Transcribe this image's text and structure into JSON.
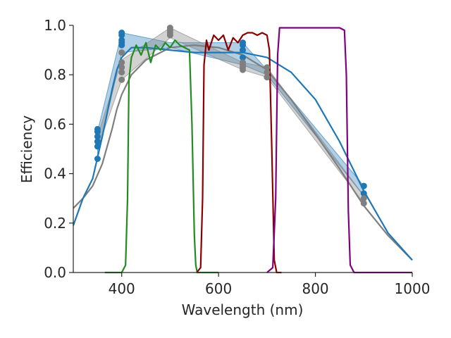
{
  "chart_data": {
    "type": "line",
    "title": "",
    "xlabel": "Wavelength (nm)",
    "ylabel": "Efficiency",
    "xlim": [
      300,
      1000
    ],
    "ylim": [
      0.0,
      1.0
    ],
    "xticks": [
      400,
      600,
      800,
      1000
    ],
    "xtick_labels": [
      "400",
      "600",
      "800",
      "1000"
    ],
    "yticks": [
      0.0,
      0.2,
      0.4,
      0.6,
      0.8,
      1.0
    ],
    "ytick_labels": [
      "0.0",
      "0.2",
      "0.4",
      "0.6",
      "0.8",
      "1.0"
    ],
    "grid": false,
    "bands": [
      {
        "name": "blue-band",
        "color": "#1f77b4",
        "x": [
          350,
          400,
          500,
          650,
          700,
          900
        ],
        "lower": [
          0.47,
          0.89,
          0.91,
          0.84,
          0.8,
          0.31
        ],
        "upper": [
          0.57,
          0.97,
          0.93,
          0.93,
          0.82,
          0.35
        ]
      },
      {
        "name": "gray-band",
        "color": "#7f7f7f",
        "x": [
          350,
          400,
          500,
          650,
          700,
          900
        ],
        "lower": [
          0.5,
          0.78,
          0.95,
          0.82,
          0.79,
          0.28
        ],
        "upper": [
          0.55,
          0.86,
          0.99,
          0.85,
          0.83,
          0.31
        ]
      }
    ],
    "series": [
      {
        "name": "gray-curve",
        "color": "#7f7f7f",
        "x": [
          300,
          320,
          340,
          360,
          380,
          390,
          400,
          420,
          450,
          480,
          500,
          550,
          600,
          650,
          700,
          750,
          800,
          850,
          900,
          950,
          1000
        ],
        "y": [
          0.26,
          0.3,
          0.35,
          0.44,
          0.58,
          0.66,
          0.72,
          0.8,
          0.86,
          0.89,
          0.91,
          0.92,
          0.91,
          0.88,
          0.82,
          0.7,
          0.56,
          0.42,
          0.27,
          0.15,
          0.05
        ]
      },
      {
        "name": "blue-curve",
        "color": "#1f77b4",
        "x": [
          300,
          320,
          340,
          360,
          380,
          390,
          400,
          420,
          450,
          500,
          550,
          600,
          650,
          700,
          750,
          800,
          850,
          900,
          950,
          1000
        ],
        "y": [
          0.19,
          0.3,
          0.38,
          0.55,
          0.74,
          0.82,
          0.87,
          0.91,
          0.91,
          0.9,
          0.89,
          0.89,
          0.89,
          0.87,
          0.81,
          0.7,
          0.53,
          0.33,
          0.16,
          0.05
        ]
      },
      {
        "name": "green-filter",
        "color": "#228b22",
        "x": [
          365,
          400,
          408,
          412,
          415,
          420,
          430,
          440,
          450,
          460,
          470,
          480,
          490,
          500,
          510,
          520,
          530,
          540,
          545,
          550,
          553,
          556,
          600
        ],
        "y": [
          0.0,
          0.0,
          0.03,
          0.3,
          0.78,
          0.87,
          0.92,
          0.88,
          0.93,
          0.85,
          0.92,
          0.9,
          0.93,
          0.91,
          0.94,
          0.92,
          0.91,
          0.9,
          0.6,
          0.15,
          0.03,
          0.0,
          0.0
        ]
      },
      {
        "name": "red-filter",
        "color": "#8b0000",
        "x": [
          555,
          563,
          567,
          570,
          575,
          580,
          590,
          600,
          610,
          620,
          630,
          640,
          650,
          660,
          670,
          680,
          690,
          700,
          705,
          710,
          715,
          720,
          730
        ],
        "y": [
          0.0,
          0.02,
          0.3,
          0.84,
          0.94,
          0.9,
          0.96,
          0.94,
          0.96,
          0.9,
          0.95,
          0.93,
          0.96,
          0.97,
          0.97,
          0.96,
          0.97,
          0.96,
          0.9,
          0.5,
          0.05,
          0.0,
          0.0
        ]
      },
      {
        "name": "purple-filter",
        "color": "#800080",
        "x": [
          700,
          712,
          718,
          722,
          726,
          730,
          740,
          800,
          850,
          860,
          864,
          868,
          872,
          880,
          1000
        ],
        "y": [
          0.0,
          0.02,
          0.3,
          0.88,
          0.99,
          0.99,
          0.99,
          0.99,
          0.99,
          0.98,
          0.8,
          0.25,
          0.03,
          0.0,
          0.0
        ]
      }
    ],
    "scatter": [
      {
        "name": "blue-points",
        "color": "#1f77b4",
        "x": [
          350,
          350,
          350,
          350,
          350,
          350,
          400,
          400,
          400,
          400,
          400,
          650,
          650,
          650,
          650,
          900,
          900
        ],
        "y": [
          0.46,
          0.51,
          0.53,
          0.55,
          0.57,
          0.58,
          0.92,
          0.93,
          0.94,
          0.96,
          0.97,
          0.87,
          0.9,
          0.92,
          0.93,
          0.32,
          0.35
        ]
      },
      {
        "name": "gray-points",
        "color": "#7f7f7f",
        "x": [
          400,
          400,
          400,
          400,
          400,
          500,
          500,
          500,
          500,
          650,
          650,
          650,
          650,
          700,
          700,
          700,
          900,
          900
        ],
        "y": [
          0.78,
          0.81,
          0.83,
          0.85,
          0.89,
          0.96,
          0.97,
          0.98,
          0.99,
          0.82,
          0.83,
          0.84,
          0.85,
          0.79,
          0.81,
          0.83,
          0.28,
          0.3
        ]
      }
    ]
  }
}
